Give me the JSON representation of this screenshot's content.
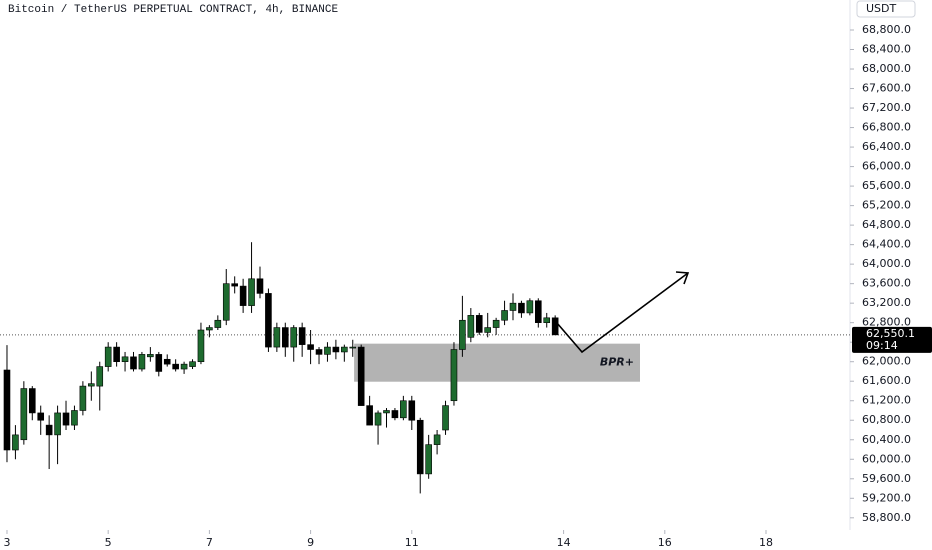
{
  "chart_data": {
    "type": "candlestick",
    "title": "Bitcoin / TetherUS PERPETUAL CONTRACT, 4h, BINANCE",
    "currency": "USDT",
    "x": [
      3,
      3.1667,
      3.3333,
      3.5,
      3.6667,
      3.8333,
      4,
      4.1667,
      4.3333,
      4.5,
      4.6667,
      4.8333,
      5,
      5.1667,
      5.3333,
      5.5,
      5.6667,
      5.8333,
      6,
      6.1667,
      6.3333,
      6.5,
      6.6667,
      6.8333,
      7,
      7.1667,
      7.3333,
      7.5,
      7.6667,
      7.8333,
      8,
      8.1667,
      8.3333,
      8.5,
      8.6667,
      8.8333,
      9,
      9.1667,
      9.3333,
      9.5,
      9.6667,
      9.8333,
      10,
      10.1667,
      10.3333,
      10.5,
      10.6667,
      10.8333,
      11,
      11.1667,
      11.3333,
      11.5,
      11.6667,
      11.8333,
      12,
      12.1667,
      12.3333,
      12.5,
      12.6667,
      12.8333,
      13,
      13.1667,
      13.3333,
      13.5,
      13.6667,
      13.8333
    ],
    "open": [
      61830,
      60190,
      60400,
      61450,
      60950,
      60700,
      60500,
      60950,
      60700,
      61000,
      61500,
      61500,
      61900,
      62300,
      62000,
      62100,
      61850,
      62100,
      62150,
      62050,
      61950,
      61850,
      61900,
      62000,
      62650,
      62700,
      62850,
      63600,
      63550,
      63150,
      63700,
      63400,
      62300,
      62700,
      62300,
      62700,
      62350,
      62250,
      62150,
      62300,
      62200,
      62300,
      62300,
      61100,
      60700,
      60950,
      61000,
      60850,
      61200,
      60800,
      59700,
      60300,
      60600,
      61200,
      62250,
      62500,
      62950,
      62600,
      62700,
      62850,
      63050,
      63200,
      63000,
      63250,
      62800,
      62900
    ],
    "high": [
      62340,
      60700,
      61600,
      61500,
      61100,
      60900,
      61100,
      61200,
      61100,
      61600,
      61800,
      62000,
      62400,
      62400,
      62200,
      62200,
      62200,
      62300,
      62200,
      62150,
      62050,
      62000,
      62050,
      62800,
      62750,
      62950,
      63900,
      63750,
      63700,
      64450,
      63950,
      63500,
      62800,
      62800,
      62750,
      62800,
      62650,
      62300,
      62400,
      62450,
      62350,
      62450,
      62350,
      61300,
      61000,
      61050,
      61050,
      61300,
      61300,
      60850,
      60500,
      60600,
      61200,
      62400,
      63350,
      63100,
      63000,
      63000,
      62900,
      63250,
      63400,
      63250,
      63300,
      63300,
      63000,
      62950
    ],
    "low": [
      59940,
      60000,
      60300,
      60800,
      60500,
      59800,
      59900,
      60600,
      60600,
      60900,
      61200,
      61000,
      61800,
      61900,
      61800,
      61800,
      61800,
      62000,
      61700,
      61900,
      61800,
      61750,
      61850,
      61950,
      62500,
      62650,
      62750,
      63400,
      63000,
      63000,
      63300,
      62200,
      62200,
      62100,
      62000,
      62100,
      61950,
      61950,
      62000,
      62050,
      62000,
      62100,
      61100,
      60700,
      60300,
      60650,
      60800,
      60800,
      60600,
      59300,
      59600,
      60100,
      60500,
      61100,
      62100,
      62400,
      62550,
      62500,
      62550,
      62750,
      62850,
      62900,
      62950,
      62700,
      62700,
      62550
    ],
    "close": [
      60190,
      60500,
      61450,
      60950,
      60800,
      60500,
      60950,
      60700,
      61000,
      61500,
      61550,
      61900,
      62300,
      62000,
      62100,
      61850,
      62150,
      62150,
      61800,
      61950,
      61850,
      61950,
      62000,
      62650,
      62700,
      62850,
      63600,
      63550,
      63150,
      63700,
      63400,
      62300,
      62700,
      62300,
      62700,
      62350,
      62250,
      62150,
      62300,
      62200,
      62300,
      62300,
      61100,
      60700,
      60950,
      61000,
      60850,
      61200,
      60800,
      59700,
      60300,
      60500,
      61100,
      62250,
      62850,
      62950,
      62600,
      62700,
      62850,
      63050,
      63200,
      63000,
      63250,
      62800,
      62900,
      62550
    ],
    "up_color": "#1e6b2f",
    "down_color": "#000000",
    "xlim": [
      2.862,
      19.66
    ],
    "xticks": [
      3,
      5,
      7,
      9,
      11,
      14,
      16,
      18
    ],
    "ylim": [
      58550,
      69415
    ],
    "yticks": [
      {
        "value": 58800,
        "label": "58,800.0"
      },
      {
        "value": 59200,
        "label": "59,200.0"
      },
      {
        "value": 59600,
        "label": "59,600.0"
      },
      {
        "value": 60000,
        "label": "60,000.0"
      },
      {
        "value": 60400,
        "label": "60,400.0"
      },
      {
        "value": 60800,
        "label": "60,800.0"
      },
      {
        "value": 61200,
        "label": "61,200.0"
      },
      {
        "value": 61600,
        "label": "61,600.0"
      },
      {
        "value": 62000,
        "label": "62,000.0"
      },
      {
        "value": 62400,
        "label": "62,400.0"
      },
      {
        "value": 62800,
        "label": "62,800.0"
      },
      {
        "value": 63200,
        "label": "63,200.0"
      },
      {
        "value": 63600,
        "label": "63,600.0"
      },
      {
        "value": 64000,
        "label": "64,000.0"
      },
      {
        "value": 64400,
        "label": "64,400.0"
      },
      {
        "value": 64800,
        "label": "64,800.0"
      },
      {
        "value": 65200,
        "label": "65,200.0"
      },
      {
        "value": 65600,
        "label": "65,600.0"
      },
      {
        "value": 66000,
        "label": "66,000.0"
      },
      {
        "value": 66400,
        "label": "66,400.0"
      },
      {
        "value": 66800,
        "label": "66,800.0"
      },
      {
        "value": 67200,
        "label": "67,200.0"
      },
      {
        "value": 67600,
        "label": "67,600.0"
      },
      {
        "value": 68000,
        "label": "68,000.0"
      },
      {
        "value": 68400,
        "label": "68,400.0"
      },
      {
        "value": 68800,
        "label": "68,800.0"
      }
    ],
    "last_price": {
      "value": 62550.1,
      "label": "62,550.1"
    },
    "countdown": "09:14",
    "zone": {
      "label": "BPR+",
      "x": [
        9.86,
        15.51
      ],
      "y": [
        61590,
        62370
      ],
      "color": "#b3b3b3"
    }
  }
}
